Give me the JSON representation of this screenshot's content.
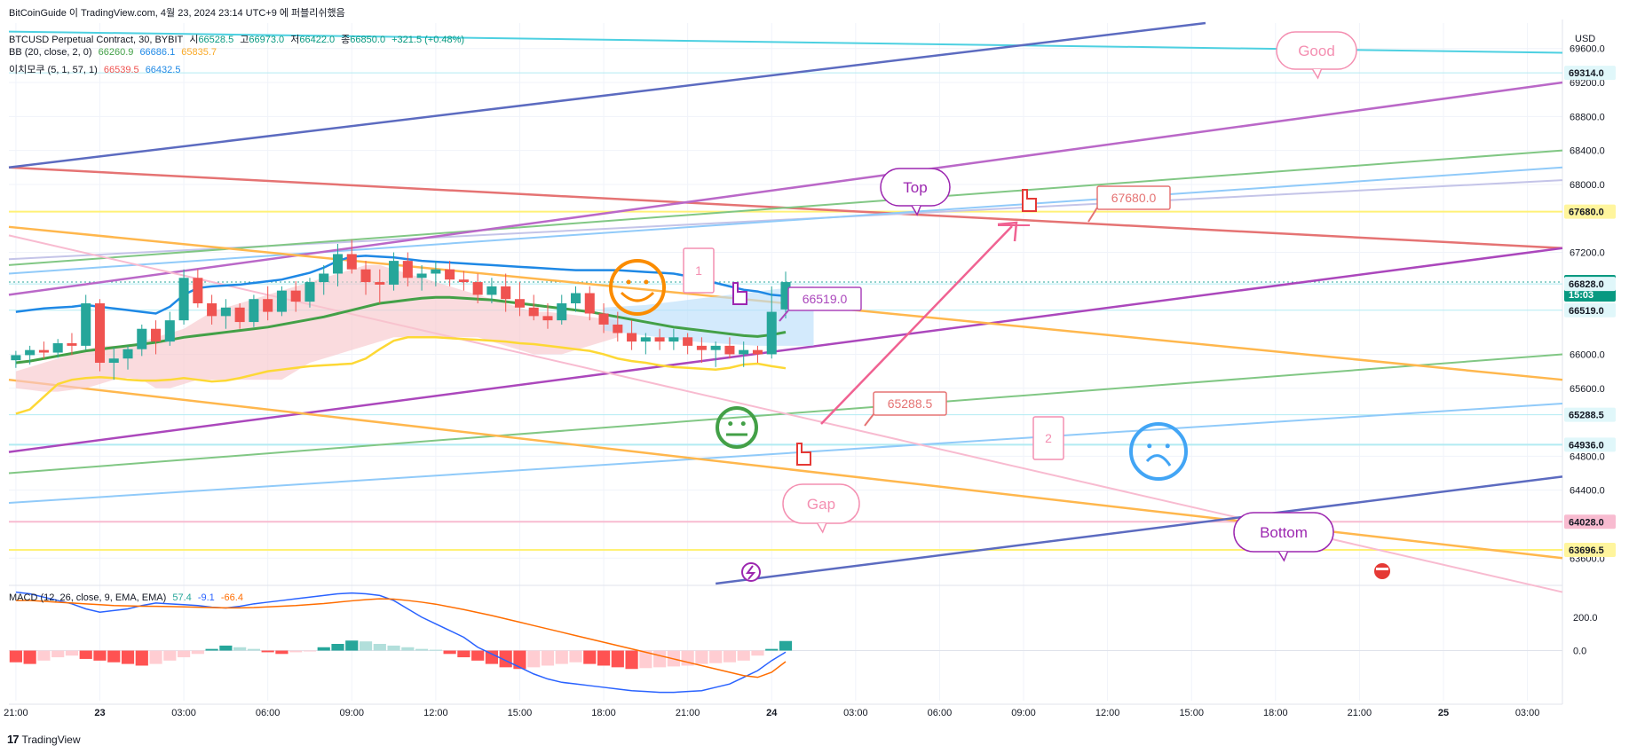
{
  "header": {
    "published": "BitCoinGuide 이 TradingView.com, 4월 23, 2024 23:14 UTC+9 에 퍼블리쉬했음",
    "symbol_line": "BTCUSD Perpetual Contract, 30, BYBIT",
    "ohlc": {
      "open_label": "시",
      "open": "66528.5",
      "high_label": "고",
      "high": "66973.0",
      "low_label": "저",
      "low": "66422.0",
      "close_label": "종",
      "close": "66850.0",
      "change": "+321.5 (+0.48%)"
    },
    "bb": {
      "label": "BB (20, close, 2, 0)",
      "v1": "66260.9",
      "v2": "66686.1",
      "v3": "65835.7"
    },
    "ichimoku": {
      "label": "이치모쿠 (5, 1, 57, 1)",
      "v1": "66539.5",
      "v2": "66432.5"
    },
    "macd": {
      "label": "MACD (12, 26, close, 9, EMA, EMA)",
      "v1": "57.4",
      "v2": "-9.1",
      "v3": "-66.4"
    }
  },
  "colors": {
    "up": "#26a69a",
    "down": "#ef5350",
    "bb_basis": "#43a047",
    "bb_upper": "#1e88e5",
    "bb_lower": "#fdd835",
    "cloud": "#f8c8cc",
    "cloud2": "#bbdefb",
    "macd": "#2962ff",
    "signal": "#ff6d00"
  },
  "currency": "USD",
  "footer": "TradingView",
  "annotations": {
    "good": "Good",
    "top": "Top",
    "gap": "Gap",
    "bottom": "Bottom",
    "one": "1",
    "two": "2",
    "label_67680": "67680.0",
    "label_66519": "66519.0",
    "label_65288": "65288.5"
  },
  "chart_data": {
    "type": "candlestick",
    "price_axis": {
      "ticks": [
        "69600.0",
        "69200.0",
        "68800.0",
        "68400.0",
        "68000.0",
        "67200.0",
        "66000.0",
        "65600.0",
        "64800.0",
        "64400.0",
        "63600.0"
      ],
      "range": [
        63300,
        69900
      ]
    },
    "price_labels": [
      {
        "value": 69314.0,
        "text": "69314.0",
        "bg": "#e0f7fa",
        "fg": "#131722"
      },
      {
        "value": 67680.0,
        "text": "67680.0",
        "bg": "#fff59d",
        "fg": "#131722"
      },
      {
        "value": 66850.0,
        "text": "66850.0",
        "sub": "15:03",
        "bg": "#089981",
        "fg": "#ffffff"
      },
      {
        "value": 66828.0,
        "text": "66828.0",
        "bg": "#e0f7fa",
        "fg": "#131722"
      },
      {
        "value": 66519.0,
        "text": "66519.0",
        "bg": "#e0f7fa",
        "fg": "#131722"
      },
      {
        "value": 65288.5,
        "text": "65288.5",
        "bg": "#e0f7fa",
        "fg": "#131722"
      },
      {
        "value": 64936.0,
        "text": "64936.0",
        "bg": "#e0f7fa",
        "fg": "#131722"
      },
      {
        "value": 64028.0,
        "text": "64028.0",
        "bg": "#f8bbd0",
        "fg": "#131722"
      },
      {
        "value": 63696.5,
        "text": "63696.5",
        "bg": "#fff59d",
        "fg": "#131722"
      }
    ],
    "macd_axis": {
      "ticks": [
        "200.0",
        "0.0"
      ],
      "range": [
        -300,
        380
      ]
    },
    "time_axis": {
      "labels": [
        "21:00",
        "23",
        "03:00",
        "06:00",
        "09:00",
        "12:00",
        "15:00",
        "18:00",
        "21:00",
        "24",
        "03:00",
        "06:00",
        "09:00",
        "12:00",
        "15:00",
        "18:00",
        "21:00",
        "25",
        "03:00"
      ],
      "bold": [
        "23",
        "24",
        "25"
      ],
      "slots": [
        0,
        6,
        12,
        18,
        24,
        30,
        36,
        42,
        48,
        54,
        60,
        66,
        72,
        78,
        84,
        90,
        96,
        102,
        108
      ]
    },
    "time_slots": 111,
    "candles": [
      [
        65930,
        66040,
        65840,
        65990
      ],
      [
        65990,
        66100,
        65880,
        66050
      ],
      [
        66050,
        66150,
        65950,
        66020
      ],
      [
        66020,
        66180,
        65960,
        66130
      ],
      [
        66130,
        66250,
        65990,
        66100
      ],
      [
        66100,
        66700,
        66050,
        66600
      ],
      [
        66600,
        66650,
        65800,
        65900
      ],
      [
        65900,
        66080,
        65700,
        65950
      ],
      [
        65950,
        66100,
        65820,
        66060
      ],
      [
        66060,
        66350,
        65980,
        66300
      ],
      [
        66300,
        66400,
        66000,
        66150
      ],
      [
        66150,
        66500,
        66100,
        66400
      ],
      [
        66400,
        67000,
        66350,
        66900
      ],
      [
        66900,
        67000,
        66550,
        66600
      ],
      [
        66600,
        66700,
        66350,
        66450
      ],
      [
        66450,
        66650,
        66300,
        66550
      ],
      [
        66550,
        66600,
        66300,
        66380
      ],
      [
        66380,
        66700,
        66320,
        66650
      ],
      [
        66650,
        66800,
        66400,
        66500
      ],
      [
        66500,
        66800,
        66450,
        66750
      ],
      [
        66750,
        66860,
        66500,
        66620
      ],
      [
        66620,
        66900,
        66550,
        66850
      ],
      [
        66850,
        67050,
        66700,
        66950
      ],
      [
        66950,
        67300,
        66800,
        67180
      ],
      [
        67180,
        67350,
        66950,
        67000
      ],
      [
        67000,
        67100,
        66700,
        66850
      ],
      [
        66850,
        67000,
        66600,
        66820
      ],
      [
        66820,
        67200,
        66750,
        67100
      ],
      [
        67100,
        67200,
        66800,
        66900
      ],
      [
        66900,
        67050,
        66750,
        66950
      ],
      [
        66950,
        67100,
        66800,
        67000
      ],
      [
        67000,
        67100,
        66800,
        66880
      ],
      [
        66880,
        66980,
        66750,
        66850
      ],
      [
        66850,
        66950,
        66600,
        66700
      ],
      [
        66700,
        66900,
        66600,
        66800
      ],
      [
        66800,
        66950,
        66500,
        66650
      ],
      [
        66650,
        66850,
        66450,
        66550
      ],
      [
        66550,
        66700,
        66400,
        66450
      ],
      [
        66450,
        66600,
        66300,
        66400
      ],
      [
        66400,
        66700,
        66350,
        66600
      ],
      [
        66600,
        66800,
        66500,
        66720
      ],
      [
        66720,
        66800,
        66400,
        66480
      ],
      [
        66480,
        66600,
        66250,
        66350
      ],
      [
        66350,
        66500,
        66150,
        66250
      ],
      [
        66250,
        66400,
        66050,
        66150
      ],
      [
        66150,
        66250,
        66000,
        66200
      ],
      [
        66200,
        66300,
        66050,
        66150
      ],
      [
        66150,
        66300,
        66050,
        66200
      ],
      [
        66200,
        66250,
        66000,
        66100
      ],
      [
        66100,
        66200,
        65900,
        66050
      ],
      [
        66050,
        66150,
        65850,
        66100
      ],
      [
        66100,
        66200,
        65950,
        66000
      ],
      [
        66000,
        66150,
        65850,
        66050
      ],
      [
        66050,
        66100,
        65900,
        66000
      ],
      [
        66000,
        66800,
        65950,
        66500
      ],
      [
        66528.5,
        66973,
        66422,
        66850
      ]
    ],
    "bb_basis": [
      65900,
      65920,
      65950,
      65980,
      66010,
      66040,
      66060,
      66080,
      66100,
      66120,
      66140,
      66170,
      66200,
      66220,
      66240,
      66260,
      66280,
      66300,
      66320,
      66350,
      66380,
      66410,
      66440,
      66480,
      66520,
      66560,
      66600,
      66620,
      66640,
      66660,
      66670,
      66670,
      66660,
      66650,
      66640,
      66620,
      66600,
      66580,
      66560,
      66540,
      66520,
      66500,
      66470,
      66440,
      66410,
      66380,
      66350,
      66320,
      66300,
      66280,
      66260,
      66240,
      66220,
      66210,
      66230,
      66260.9
    ],
    "bb_upper": [
      66500,
      66520,
      66540,
      66550,
      66560,
      66580,
      66560,
      66540,
      66520,
      66500,
      66480,
      66560,
      66700,
      66780,
      66800,
      66810,
      66820,
      66840,
      66860,
      66880,
      66920,
      66960,
      67020,
      67100,
      67150,
      67160,
      67150,
      67140,
      67120,
      67100,
      67090,
      67080,
      67070,
      67060,
      67050,
      67040,
      67030,
      67020,
      67010,
      67000,
      66990,
      66990,
      66990,
      66990,
      66980,
      66970,
      66960,
      66950,
      66920,
      66880,
      66840,
      66800,
      66760,
      66740,
      66700,
      66686.1
    ],
    "bb_lower": [
      65300,
      65350,
      65500,
      65650,
      65700,
      65720,
      65730,
      65720,
      65700,
      65690,
      65690,
      65700,
      65720,
      65700,
      65680,
      65690,
      65720,
      65760,
      65800,
      65820,
      65840,
      65860,
      65870,
      65880,
      65890,
      65950,
      66060,
      66160,
      66200,
      66200,
      66200,
      66190,
      66180,
      66170,
      66160,
      66150,
      66130,
      66120,
      66100,
      66080,
      66060,
      66040,
      66000,
      65950,
      65920,
      65900,
      65870,
      65850,
      65840,
      65830,
      65820,
      65840,
      65880,
      65890,
      65860,
      65835.7
    ],
    "cloud": {
      "start": 0,
      "a": [
        65800,
        65850,
        65900,
        65950,
        66000,
        66050,
        66100,
        66100,
        66100,
        66150,
        66200,
        66250,
        66300,
        66400,
        66500,
        66550,
        66600,
        66650,
        66700,
        66750,
        66800,
        66850,
        66900,
        66950,
        67000,
        67050,
        67050,
        67000,
        66950,
        66900,
        66850,
        66800,
        66750,
        66700,
        66650,
        66600,
        66550,
        66500,
        66500,
        66480,
        66460,
        66440,
        66420,
        66400
      ],
      "b": [
        65600,
        65580,
        65560,
        65560,
        65580,
        65600,
        65650,
        65700,
        65720,
        65700,
        65600,
        65600,
        65650,
        65700,
        65700,
        65700,
        65700,
        65700,
        65700,
        65700,
        65800,
        65900,
        65950,
        66000,
        66050,
        66100,
        66150,
        66200,
        66200,
        66200,
        66200,
        66200,
        66200,
        66200,
        66150,
        66100,
        66050,
        66000,
        66000,
        66000,
        66050,
        66100,
        66150,
        66200
      ],
      "b_start": 0
    },
    "cloud_fwd": {
      "start": 42,
      "a": [
        66550,
        66560,
        66570,
        66580,
        66600,
        66620,
        66640,
        66660,
        66680,
        66700,
        66720,
        66740,
        66760,
        66780,
        66790,
        66800
      ],
      "b": [
        66280,
        66260,
        66240,
        66220,
        66200,
        66180,
        66160,
        66140,
        66130,
        66120,
        66110,
        66100,
        66100,
        66100,
        66100,
        66100
      ]
    },
    "macd_hist": [
      -70,
      -80,
      -60,
      -40,
      -30,
      -50,
      -60,
      -70,
      -80,
      -90,
      -80,
      -60,
      -40,
      -20,
      10,
      30,
      20,
      10,
      -10,
      -20,
      -10,
      -5,
      20,
      40,
      60,
      55,
      40,
      30,
      20,
      10,
      5,
      -20,
      -40,
      -60,
      -80,
      -100,
      -110,
      -100,
      -90,
      -80,
      -70,
      -80,
      -90,
      -100,
      -110,
      -105,
      -100,
      -95,
      -90,
      -80,
      -75,
      -70,
      -60,
      -30,
      10,
      57.4
    ],
    "macd_line": [
      350,
      340,
      320,
      300,
      280,
      250,
      230,
      240,
      250,
      270,
      285,
      280,
      275,
      270,
      260,
      255,
      265,
      280,
      290,
      300,
      310,
      320,
      330,
      340,
      345,
      340,
      330,
      300,
      250,
      200,
      160,
      120,
      80,
      20,
      -20,
      -60,
      -100,
      -140,
      -170,
      -190,
      -200,
      -210,
      -220,
      -230,
      -240,
      -245,
      -250,
      -250,
      -245,
      -240,
      -220,
      -200,
      -160,
      -120,
      -60,
      -9.1
    ],
    "macd_signal": [
      300,
      300,
      295,
      290,
      285,
      280,
      275,
      270,
      268,
      266,
      265,
      264,
      262,
      260,
      258,
      256,
      256,
      258,
      262,
      266,
      270,
      276,
      282,
      290,
      298,
      305,
      310,
      308,
      300,
      290,
      278,
      262,
      246,
      228,
      210,
      190,
      170,
      150,
      130,
      110,
      90,
      70,
      50,
      30,
      10,
      -10,
      -30,
      -50,
      -70,
      -90,
      -110,
      -130,
      -150,
      -160,
      -130,
      -66.4
    ]
  }
}
